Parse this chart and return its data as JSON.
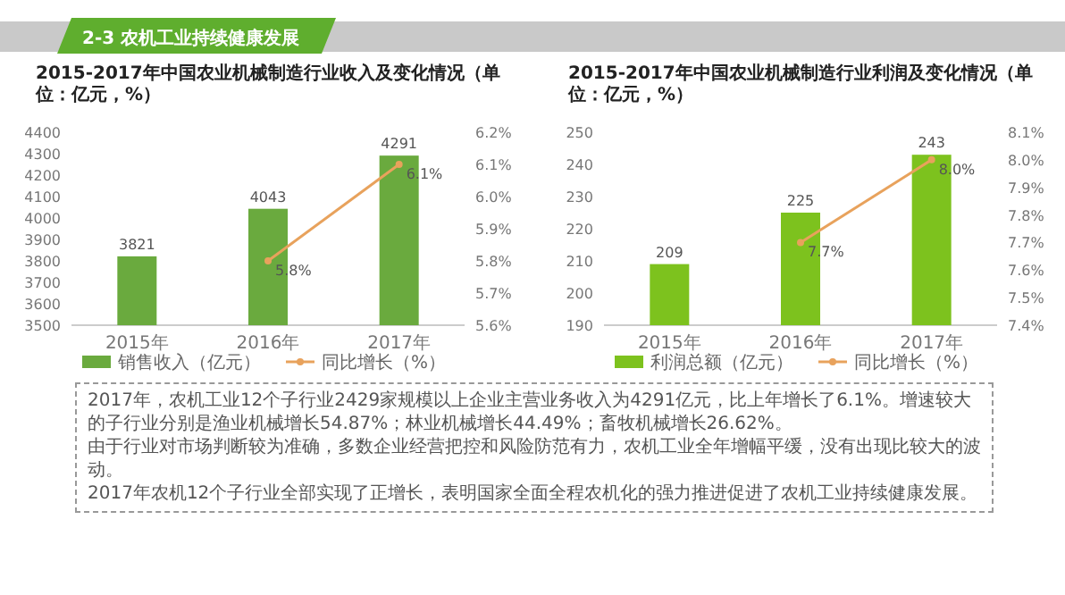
{
  "chart_data": [
    {
      "type": "other",
      "title": "2-3 农机工业持续健康发展"
    },
    {
      "type": "bar",
      "title": "2015-2017年中国农业机械制造行业收入及变化情况（单位：亿元，%）",
      "categories": [
        "2015年",
        "2016年",
        "2017年"
      ],
      "series": [
        {
          "name": "销售收入（亿元）",
          "type": "bar",
          "color": "#6aaa3e",
          "values": [
            3821,
            4043,
            4291
          ],
          "value_labels": [
            "3821",
            "4043",
            "4291"
          ]
        },
        {
          "name": "同比增长（%）",
          "type": "line",
          "axis": "y2",
          "color": "#e8a25c",
          "marker": "circle",
          "values": [
            null,
            5.8,
            6.1
          ],
          "value_labels": [
            null,
            "5.8%",
            "6.1%"
          ]
        }
      ],
      "ylim": [
        3500,
        4400
      ],
      "yticks": [
        3500,
        3600,
        3700,
        3800,
        3900,
        4000,
        4100,
        4200,
        4300,
        4400
      ],
      "y2lim": [
        5.6,
        6.2
      ],
      "y2ticks": [
        {
          "value": 5.6,
          "label": "5.6%"
        },
        {
          "value": 5.7,
          "label": "5.7%"
        },
        {
          "value": 5.8,
          "label": "5.8%"
        },
        {
          "value": 5.9,
          "label": "5.9%"
        },
        {
          "value": 6.0,
          "label": "6.0%"
        },
        {
          "value": 6.1,
          "label": "6.1%"
        },
        {
          "value": 6.2,
          "label": "6.2%"
        }
      ],
      "legend": "bottom"
    },
    {
      "type": "bar",
      "title": "2015-2017年中国农业机械制造行业利润及变化情况（单位：亿元，%）",
      "categories": [
        "2015年",
        "2016年",
        "2017年"
      ],
      "series": [
        {
          "name": "利润总额（亿元）",
          "type": "bar",
          "color": "#7dc21e",
          "values": [
            209,
            225,
            243
          ],
          "value_labels": [
            "209",
            "225",
            "243"
          ]
        },
        {
          "name": "同比增长（%）",
          "type": "line",
          "axis": "y2",
          "color": "#e8a25c",
          "marker": "circle",
          "values": [
            null,
            7.7,
            8.0
          ],
          "value_labels": [
            null,
            "7.7%",
            "8.0%"
          ]
        }
      ],
      "ylim": [
        190,
        250
      ],
      "yticks": [
        190,
        200,
        210,
        220,
        230,
        240,
        250
      ],
      "y2lim": [
        7.4,
        8.1
      ],
      "y2ticks": [
        {
          "value": 7.4,
          "label": "7.4%"
        },
        {
          "value": 7.5,
          "label": "7.5%"
        },
        {
          "value": 7.6,
          "label": "7.6%"
        },
        {
          "value": 7.7,
          "label": "7.7%"
        },
        {
          "value": 7.8,
          "label": "7.8%"
        },
        {
          "value": 7.9,
          "label": "7.9%"
        },
        {
          "value": 8.0,
          "label": "8.0%"
        },
        {
          "value": 8.1,
          "label": "8.1%"
        }
      ],
      "legend": "bottom"
    },
    {
      "type": "other",
      "annotations": [
        "2017年，农机工业12个子行业2429家规模以上企业主营业务收入为4291亿元，比上年增长了6.1%。增速较大的子行业分别是渔业机械增长54.87%；林业机械增长44.49%；畜牧机械增长26.62%。",
        "由于行业对市场判断较为准确，多数企业经营把控和风险防范有力，农机工业全年增幅平缓，没有出现比较大的波动。",
        "2017年农机12个子行业全部实现了正增长，表明国家全面全程农机化的强力推进促进了农机工业持续健康发展。"
      ]
    }
  ]
}
